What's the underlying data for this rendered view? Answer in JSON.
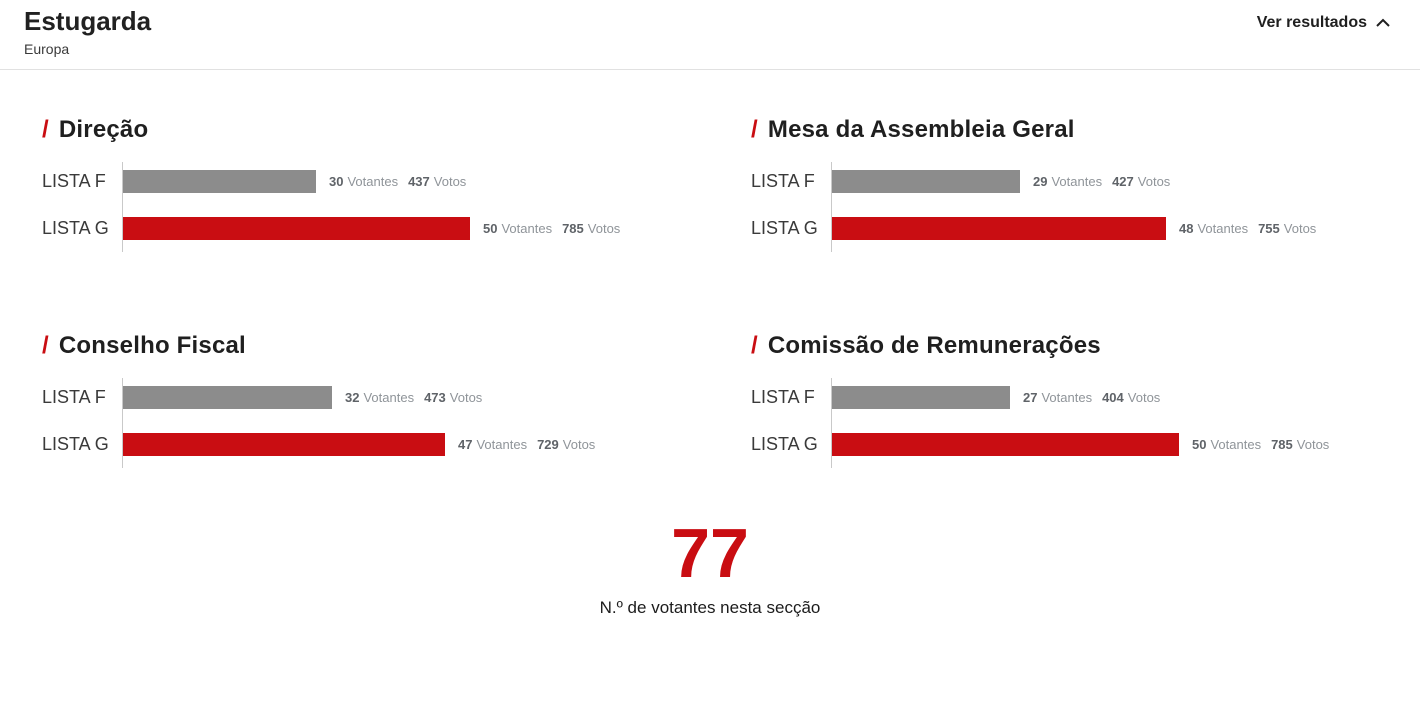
{
  "header": {
    "title": "Estugarda",
    "subtitle": "Europa",
    "toggle_label": "Ver resultados",
    "toggle_icon": "chevron-up-icon"
  },
  "labels": {
    "votantes": "Votantes",
    "votos": "Votos"
  },
  "colors": {
    "accent": "#c90d12",
    "bar_gray": "#8c8c8c"
  },
  "footer": {
    "total": "77",
    "caption": "N.º de votantes nesta secção"
  },
  "chart_data": [
    {
      "type": "bar",
      "orientation": "horizontal",
      "title": "Direção",
      "categories": [
        "LISTA F",
        "LISTA G"
      ],
      "series": [
        {
          "name": "Votantes",
          "values": [
            30,
            50
          ]
        },
        {
          "name": "Votos",
          "values": [
            437,
            785
          ]
        }
      ],
      "bar_colors": [
        "#8c8c8c",
        "#c90d12"
      ],
      "value_scale": "Votos",
      "xlim": [
        0,
        785
      ]
    },
    {
      "type": "bar",
      "orientation": "horizontal",
      "title": "Mesa da Assembleia Geral",
      "categories": [
        "LISTA F",
        "LISTA G"
      ],
      "series": [
        {
          "name": "Votantes",
          "values": [
            29,
            48
          ]
        },
        {
          "name": "Votos",
          "values": [
            427,
            755
          ]
        }
      ],
      "bar_colors": [
        "#8c8c8c",
        "#c90d12"
      ],
      "value_scale": "Votos",
      "xlim": [
        0,
        785
      ]
    },
    {
      "type": "bar",
      "orientation": "horizontal",
      "title": "Conselho Fiscal",
      "categories": [
        "LISTA F",
        "LISTA G"
      ],
      "series": [
        {
          "name": "Votantes",
          "values": [
            32,
            47
          ]
        },
        {
          "name": "Votos",
          "values": [
            473,
            729
          ]
        }
      ],
      "bar_colors": [
        "#8c8c8c",
        "#c90d12"
      ],
      "value_scale": "Votos",
      "xlim": [
        0,
        785
      ]
    },
    {
      "type": "bar",
      "orientation": "horizontal",
      "title": "Comissão de Remunerações",
      "categories": [
        "LISTA F",
        "LISTA G"
      ],
      "series": [
        {
          "name": "Votantes",
          "values": [
            27,
            50
          ]
        },
        {
          "name": "Votos",
          "values": [
            404,
            785
          ]
        }
      ],
      "bar_colors": [
        "#8c8c8c",
        "#c90d12"
      ],
      "value_scale": "Votos",
      "xlim": [
        0,
        785
      ]
    }
  ]
}
